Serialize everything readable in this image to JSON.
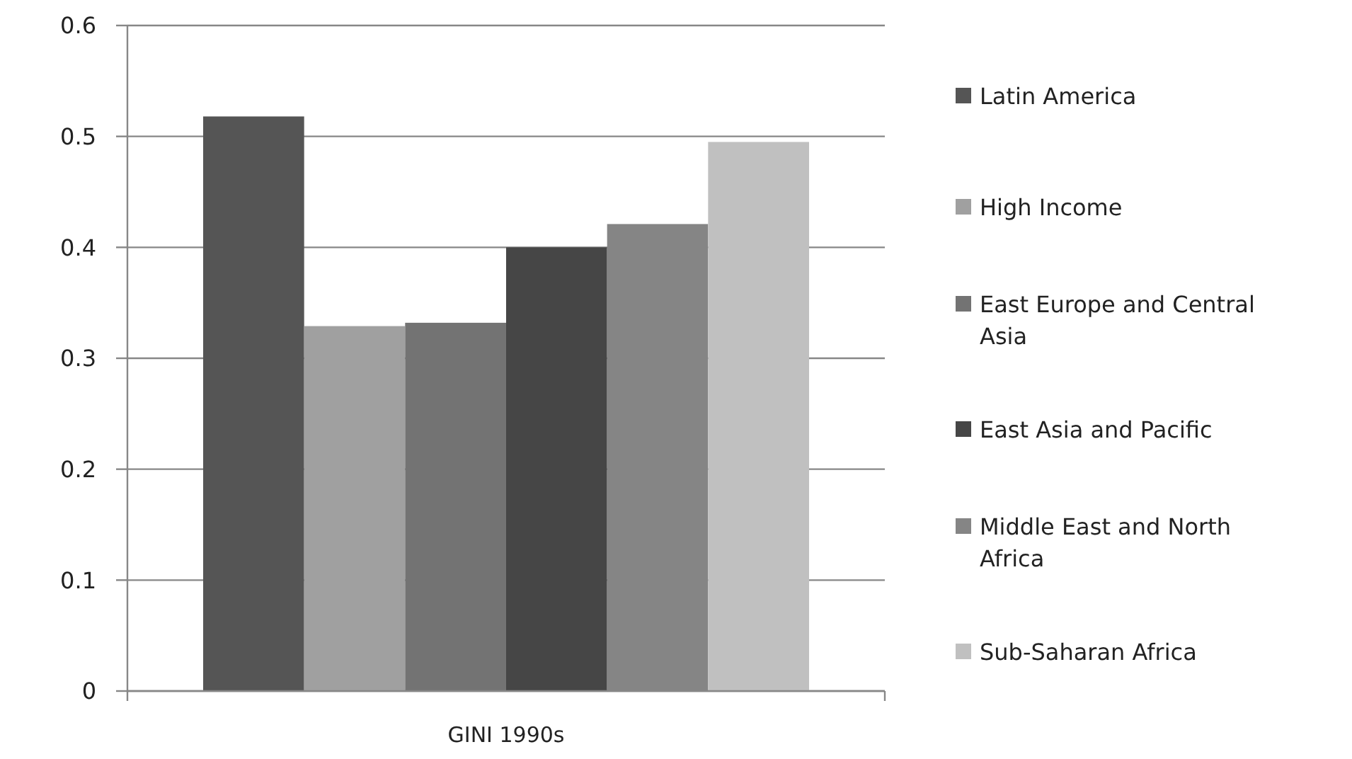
{
  "chart_data": {
    "type": "bar",
    "categories": [
      "GINI 1990s"
    ],
    "series": [
      {
        "name": "Latin America",
        "color": "#555555",
        "values": [
          0.518
        ]
      },
      {
        "name": "High Income",
        "color": "#a0a0a0",
        "values": [
          0.329
        ]
      },
      {
        "name": "East Europe and Central Asia",
        "color": "#737373",
        "values": [
          0.332
        ]
      },
      {
        "name": "East Asia and Pacific",
        "color": "#464646",
        "values": [
          0.4
        ]
      },
      {
        "name": "Middle East and North Africa",
        "color": "#858585",
        "values": [
          0.421
        ]
      },
      {
        "name": "Sub-Saharan Africa",
        "color": "#c0c0c0",
        "values": [
          0.495
        ]
      }
    ],
    "ylim": [
      0,
      0.6
    ],
    "yticks": [
      0,
      0.1,
      0.2,
      0.3,
      0.4,
      0.5,
      0.6
    ],
    "grid": "y",
    "legend": "right"
  }
}
